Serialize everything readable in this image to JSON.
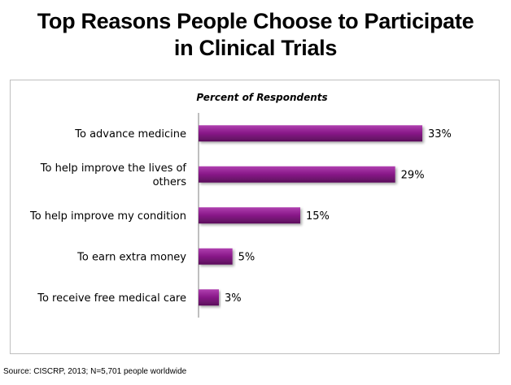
{
  "title_lines": [
    "Top Reasons People Choose to Participate",
    "in Clinical Trials"
  ],
  "source": "Source: CISCRP, 2013; N=5,701 people worldwide",
  "chart_data": {
    "type": "bar",
    "orientation": "horizontal",
    "subtitle": "Percent of Respondents",
    "categories": [
      [
        "To advance medicine"
      ],
      [
        "To help improve the lives of",
        "others"
      ],
      [
        "To help improve my condition"
      ],
      [
        "To earn extra money"
      ],
      [
        "To receive free medical care"
      ]
    ],
    "values": [
      33,
      29,
      15,
      5,
      3
    ],
    "data_labels": [
      "33%",
      "29%",
      "15%",
      "5%",
      "3%"
    ],
    "unit": "%",
    "xlim": [
      0,
      33
    ],
    "grid": false,
    "legend": "none",
    "bar_color": "#8b1a8b",
    "bar_color_light": "#b040b0",
    "bar_color_dark": "#5a0f5a"
  }
}
